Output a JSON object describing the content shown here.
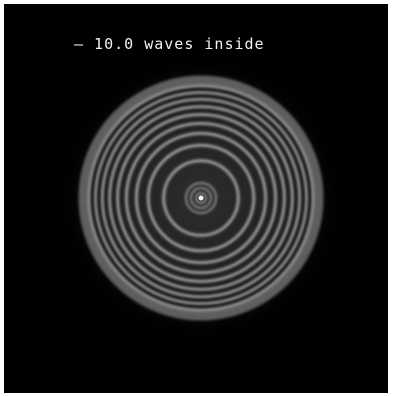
{
  "image": {
    "caption": "– 10.0 waves inside",
    "ring_count": 10,
    "colors": {
      "background": "#000000",
      "frame": "#ffffff",
      "rings": "#ffffff",
      "text": "#f2f2f2"
    }
  }
}
